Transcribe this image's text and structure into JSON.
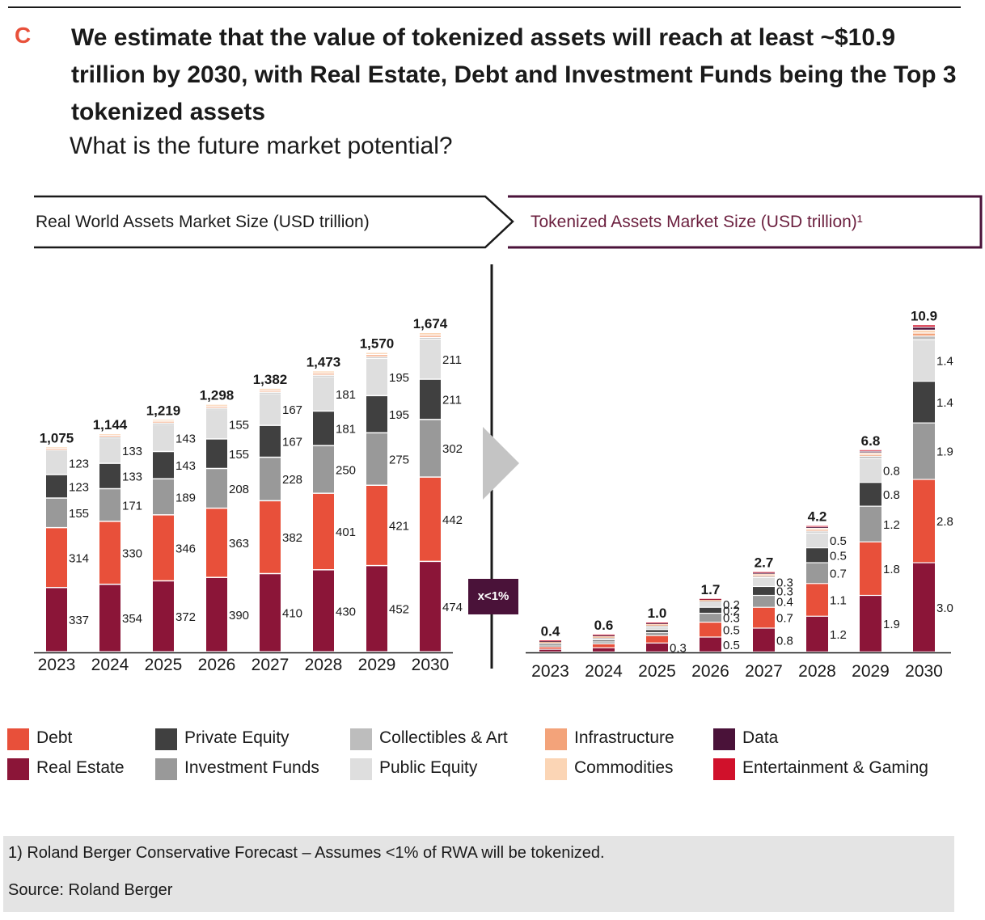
{
  "header": {
    "letter": "C",
    "headline": "We estimate that the value of tokenized assets will reach at least ~$10.9 trillion by 2030, with Real Estate, Debt and Investment Funds being the Top 3 tokenized assets",
    "subhead": "What is the future market potential?"
  },
  "banners": {
    "left": "Real World Assets Market Size (USD trillion)",
    "right": "Tokenized Assets Market Size (USD trillion)¹"
  },
  "multiplier_badge": "x<1%",
  "colors": {
    "Real Estate": "#8b1538",
    "Debt": "#e8503a",
    "Investment Funds": "#999999",
    "Private Equity": "#404040",
    "Public Equity": "#dedede",
    "Collectibles & Art": "#bdbdbd",
    "Infrastructure": "#f3a37a",
    "Commodities": "#fbd5b5",
    "Data": "#4a1239",
    "Entertainment & Gaming": "#d0112b",
    "badge": "#4a1239",
    "right_banner_border": "#4a1239"
  },
  "legend": [
    {
      "label": "Debt",
      "color_key": "Debt"
    },
    {
      "label": "Real Estate",
      "color_key": "Real Estate"
    },
    {
      "label": "Private Equity",
      "color_key": "Private Equity"
    },
    {
      "label": "Investment Funds",
      "color_key": "Investment Funds"
    },
    {
      "label": "Collectibles & Art",
      "color_key": "Collectibles & Art"
    },
    {
      "label": "Public Equity",
      "color_key": "Public Equity"
    },
    {
      "label": "Infrastructure",
      "color_key": "Infrastructure"
    },
    {
      "label": "Commodities",
      "color_key": "Commodities"
    },
    {
      "label": "Data",
      "color_key": "Data"
    },
    {
      "label": "Entertainment & Gaming",
      "color_key": "Entertainment & Gaming"
    }
  ],
  "chart_data": [
    {
      "type": "bar",
      "stacked": true,
      "title": "Real World Assets Market Size (USD trillion)",
      "categories": [
        "2023",
        "2024",
        "2025",
        "2026",
        "2027",
        "2028",
        "2029",
        "2030"
      ],
      "totals": [
        "1,075",
        "1,144",
        "1,219",
        "1,298",
        "1,382",
        "1,473",
        "1,570",
        "1,674"
      ],
      "series": [
        {
          "name": "Real Estate",
          "values": [
            337,
            354,
            372,
            390,
            410,
            430,
            452,
            474
          ],
          "labels": [
            "337",
            "354",
            "372",
            "390",
            "410",
            "430",
            "452",
            "474"
          ]
        },
        {
          "name": "Debt",
          "values": [
            314,
            330,
            346,
            363,
            382,
            401,
            421,
            442
          ],
          "labels": [
            "314",
            "330",
            "346",
            "363",
            "382",
            "401",
            "421",
            "442"
          ]
        },
        {
          "name": "Investment Funds",
          "values": [
            155,
            171,
            189,
            208,
            228,
            250,
            275,
            302
          ],
          "labels": [
            "155",
            "171",
            "189",
            "208",
            "228",
            "250",
            "275",
            "302"
          ]
        },
        {
          "name": "Private Equity",
          "values": [
            123,
            133,
            143,
            155,
            167,
            181,
            195,
            211
          ],
          "labels": [
            "123",
            "133",
            "143",
            "155",
            "167",
            "181",
            "195",
            "211"
          ]
        },
        {
          "name": "Public Equity",
          "values": [
            123,
            133,
            143,
            155,
            167,
            181,
            195,
            211
          ],
          "labels": [
            "123",
            "133",
            "143",
            "155",
            "167",
            "181",
            "195",
            "211"
          ]
        },
        {
          "name": "Collectibles & Art",
          "values": [
            5,
            5,
            6,
            6,
            7,
            7,
            8,
            8
          ]
        },
        {
          "name": "Infrastructure",
          "values": [
            9,
            9,
            10,
            10,
            10,
            11,
            12,
            12
          ]
        },
        {
          "name": "Commodities",
          "values": [
            9,
            9,
            10,
            11,
            11,
            12,
            12,
            14
          ]
        }
      ]
    },
    {
      "type": "bar",
      "stacked": true,
      "title": "Tokenized Assets Market Size (USD trillion)¹",
      "categories": [
        "2023",
        "2024",
        "2025",
        "2026",
        "2027",
        "2028",
        "2029",
        "2030"
      ],
      "totals": [
        "0.4",
        "0.6",
        "1.0",
        "1.7",
        "2.7",
        "4.2",
        "6.8",
        "10.9"
      ],
      "series": [
        {
          "name": "Real Estate",
          "values": [
            0.09,
            0.14,
            0.3,
            0.5,
            0.8,
            1.2,
            1.9,
            3.0
          ],
          "labels": [
            "",
            "",
            "0.3",
            "0.5",
            "0.8",
            "1.2",
            "1.9",
            "3.0"
          ]
        },
        {
          "name": "Debt",
          "values": [
            0.08,
            0.13,
            0.25,
            0.5,
            0.7,
            1.1,
            1.8,
            2.8
          ],
          "labels": [
            "",
            "",
            "",
            "0.5",
            "0.7",
            "1.1",
            "1.8",
            "2.8"
          ]
        },
        {
          "name": "Investment Funds",
          "values": [
            0.05,
            0.07,
            0.1,
            0.3,
            0.4,
            0.7,
            1.2,
            1.9
          ],
          "labels": [
            "",
            "",
            "",
            "0.3",
            "0.4",
            "0.7",
            "1.2",
            "1.9"
          ]
        },
        {
          "name": "Private Equity",
          "values": [
            0.04,
            0.06,
            0.1,
            0.2,
            0.3,
            0.5,
            0.8,
            1.4
          ],
          "labels": [
            "",
            "",
            "",
            "0.2",
            "0.3",
            "0.5",
            "0.8",
            "1.4"
          ]
        },
        {
          "name": "Public Equity",
          "values": [
            0.04,
            0.06,
            0.1,
            0.2,
            0.3,
            0.5,
            0.8,
            1.4
          ],
          "labels": [
            "",
            "",
            "",
            "0.2",
            "0.3",
            "0.5",
            "0.8",
            "1.4"
          ]
        },
        {
          "name": "Collectibles & Art",
          "values": [
            0.02,
            0.03,
            0.04,
            0.03,
            0.05,
            0.06,
            0.08,
            0.12
          ]
        },
        {
          "name": "Infrastructure",
          "values": [
            0.02,
            0.03,
            0.03,
            0.02,
            0.04,
            0.05,
            0.06,
            0.1
          ]
        },
        {
          "name": "Commodities",
          "values": [
            0.02,
            0.02,
            0.03,
            0.02,
            0.04,
            0.05,
            0.06,
            0.1
          ]
        },
        {
          "name": "Data",
          "values": [
            0.02,
            0.03,
            0.03,
            0.02,
            0.04,
            0.05,
            0.05,
            0.1
          ]
        },
        {
          "name": "Entertainment & Gaming",
          "values": [
            0.02,
            0.03,
            0.02,
            0.01,
            0.03,
            0.04,
            0.05,
            0.08
          ]
        }
      ]
    }
  ],
  "footnote": {
    "note": "1) Roland Berger Conservative Forecast – Assumes <1% of RWA will be tokenized.",
    "source": "Source: Roland Berger"
  }
}
